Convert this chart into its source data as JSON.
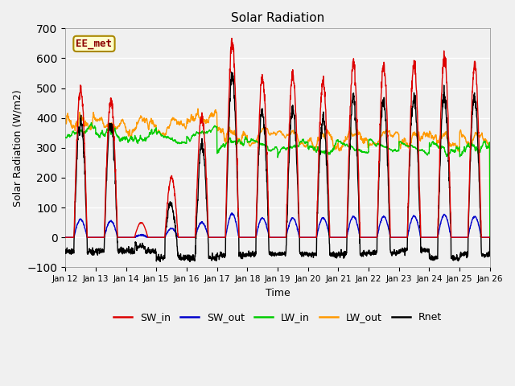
{
  "title": "Solar Radiation",
  "xlabel": "Time",
  "ylabel": "Solar Radiation (W/m2)",
  "ylim": [
    -100,
    700
  ],
  "yticks": [
    -100,
    0,
    100,
    200,
    300,
    400,
    500,
    600,
    700
  ],
  "fig_bg_color": "#f0f0f0",
  "plot_bg_color": "#f0f0f0",
  "annotation_text": "EE_met",
  "annotation_box_color": "#ffffcc",
  "annotation_border_color": "#aa8800",
  "legend_entries": [
    "SW_in",
    "SW_out",
    "LW_in",
    "LW_out",
    "Rnet"
  ],
  "legend_colors": [
    "#dd0000",
    "#0000cc",
    "#00cc00",
    "#ff9900",
    "#000000"
  ],
  "line_widths": [
    1.0,
    1.0,
    1.0,
    1.0,
    1.0
  ],
  "n_days": 14,
  "points_per_day": 144,
  "start_day": 12,
  "sw_in_peaks": [
    500,
    460,
    50,
    200,
    405,
    655,
    535,
    550,
    520,
    585,
    575,
    580,
    605,
    575
  ],
  "sw_out_peaks": [
    60,
    55,
    8,
    30,
    50,
    80,
    65,
    65,
    65,
    70,
    70,
    72,
    75,
    70
  ],
  "lw_in_base": [
    355,
    345,
    335,
    330,
    350,
    315,
    310,
    305,
    295,
    300,
    305,
    300,
    298,
    300
  ],
  "lw_out_base": [
    380,
    375,
    370,
    365,
    395,
    340,
    335,
    330,
    320,
    325,
    330,
    325,
    320,
    325
  ]
}
